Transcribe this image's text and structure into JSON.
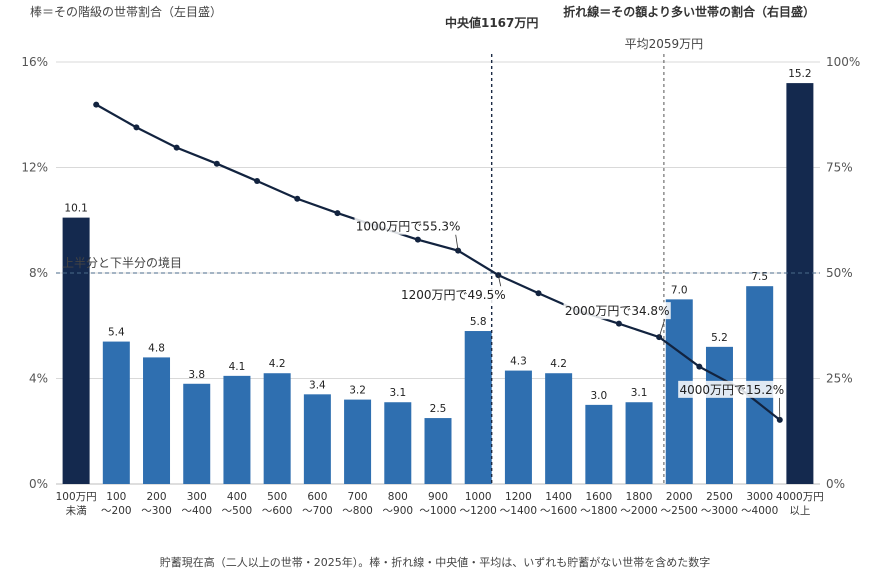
{
  "chart_data": {
    "type": "bar",
    "left_axis_note": "棒＝その階級の世帯割合（左目盛）",
    "right_axis_note": "折れ線＝その額より多い世帯の割合（右目盛）",
    "caption": "貯蓄現在高（二人以上の世帯・2025年）。棒・折れ線・中央値・平均は、いずれも貯蓄がない世帯を含めた数字",
    "categories": [
      [
        "100万円",
        "未満"
      ],
      [
        "100",
        "〜200"
      ],
      [
        "200",
        "〜300"
      ],
      [
        "300",
        "〜400"
      ],
      [
        "400",
        "〜500"
      ],
      [
        "500",
        "〜600"
      ],
      [
        "600",
        "〜700"
      ],
      [
        "700",
        "〜800"
      ],
      [
        "800",
        "〜900"
      ],
      [
        "900",
        "〜1000"
      ],
      [
        "1000",
        "〜1200"
      ],
      [
        "1200",
        "〜1400"
      ],
      [
        "1400",
        "〜1600"
      ],
      [
        "1600",
        "〜1800"
      ],
      [
        "1800",
        "〜2000"
      ],
      [
        "2000",
        "〜2500"
      ],
      [
        "2500",
        "〜3000"
      ],
      [
        "3000",
        "〜4000"
      ],
      [
        "4000万円",
        "以上"
      ]
    ],
    "bar_values": [
      10.1,
      5.4,
      4.8,
      3.8,
      4.1,
      4.2,
      3.4,
      3.2,
      3.1,
      2.5,
      5.8,
      4.3,
      4.2,
      3.0,
      3.1,
      7.0,
      5.2,
      7.5,
      15.2
    ],
    "bar_value_labels": [
      "10.1",
      "5.4",
      "4.8",
      "3.8",
      "4.1",
      "4.2",
      "3.4",
      "3.2",
      "3.1",
      "2.5",
      "5.8",
      "4.3",
      "4.2",
      "3.0",
      "3.1",
      "7.0",
      "5.2",
      "7.5",
      "15.2"
    ],
    "bar_colors": {
      "end": "#14294e",
      "middle": "#2f6fb0"
    },
    "line_color": "#12233f",
    "left_axis": {
      "ylim": [
        0,
        16
      ],
      "ticks": [
        0,
        4,
        8,
        12,
        16
      ],
      "tick_labels": [
        "0%",
        "4%",
        "8%",
        "12%",
        "16%"
      ]
    },
    "right_axis": {
      "ylim": [
        0,
        100
      ],
      "ticks": [
        0,
        25,
        50,
        75,
        100
      ],
      "tick_labels": [
        "0%",
        "25%",
        "50%",
        "75%",
        "100%"
      ]
    },
    "line": {
      "x_thresholds": [
        100,
        200,
        300,
        400,
        500,
        600,
        700,
        800,
        900,
        1000,
        1200,
        1400,
        1600,
        1800,
        2000,
        2500,
        3000,
        4000
      ],
      "values": [
        89.9,
        84.5,
        79.7,
        75.9,
        71.8,
        67.6,
        64.2,
        61.0,
        57.9,
        55.3,
        49.5,
        45.2,
        41.0,
        38.0,
        34.8,
        27.8,
        22.7,
        15.2
      ]
    },
    "line_annotations": [
      {
        "threshold": 1000,
        "text": "1000万円で55.3%"
      },
      {
        "threshold": 1200,
        "text": "1200万円で49.5%"
      },
      {
        "threshold": 2000,
        "text": "2000万円で34.8%"
      },
      {
        "threshold": 4000,
        "text": "4000万円で15.2%"
      }
    ],
    "reference_lines": [
      {
        "kind": "vertical",
        "value_man_yen": 1167,
        "label": "中央値1167万円"
      },
      {
        "kind": "vertical",
        "value_man_yen": 2059,
        "label": "平均2059万円"
      },
      {
        "kind": "horizontal",
        "axis": "right",
        "value": 50,
        "label": "上半分と下半分の境目"
      }
    ],
    "grid": true
  }
}
